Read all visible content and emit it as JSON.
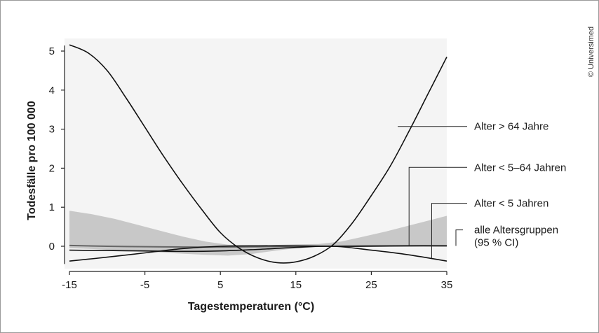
{
  "credit": "© Universimed",
  "chart_data": {
    "type": "line",
    "xlabel": "Tagestemperaturen (°C)",
    "ylabel": "Todesfälle pro 100 000",
    "xlim": [
      -15,
      35
    ],
    "ylim": [
      -0.42,
      5.35
    ],
    "x_ticks": [
      -15,
      -5,
      5,
      15,
      25,
      35
    ],
    "x_tick_labels": [
      "-15",
      "-5",
      "5",
      "15",
      "25",
      "35"
    ],
    "y_ticks": [
      0,
      1,
      2,
      3,
      4,
      5
    ],
    "y_tick_labels": [
      "0",
      "1",
      "2",
      "3",
      "4",
      "5"
    ],
    "grid": false,
    "series": [
      {
        "name": "Alter > 64 Jahre",
        "x": [
          -15,
          -12.5,
          -10,
          -7.5,
          -5,
          -2.5,
          0,
          2.5,
          5,
          7.5,
          10,
          12.5,
          15,
          17.5,
          20,
          22.5,
          25,
          27.5,
          30,
          32.5,
          35
        ],
        "y": [
          5.16,
          4.95,
          4.5,
          3.8,
          3.05,
          2.3,
          1.6,
          0.95,
          0.35,
          -0.05,
          -0.3,
          -0.42,
          -0.4,
          -0.25,
          0.05,
          0.6,
          1.3,
          2.05,
          2.95,
          3.9,
          4.85
        ],
        "color": "#111111"
      },
      {
        "name": "Alter < 5–64 Jahren",
        "x": [
          -15,
          -10,
          -5,
          0,
          5,
          10,
          15,
          20,
          25,
          30,
          35
        ],
        "y": [
          -0.38,
          -0.28,
          -0.17,
          -0.06,
          0.0,
          0.01,
          0.01,
          0.0,
          0.0,
          0.01,
          0.01
        ],
        "color": "#111111"
      },
      {
        "name": "Alter < 5 Jahren",
        "x": [
          -15,
          -10,
          -5,
          0,
          5,
          10,
          15,
          20,
          25,
          30,
          35
        ],
        "y": [
          -0.1,
          -0.11,
          -0.12,
          -0.13,
          -0.12,
          -0.08,
          -0.03,
          0.0,
          -0.1,
          -0.22,
          -0.38
        ],
        "color": "#111111"
      },
      {
        "name": "alle Altersgruppen",
        "x": [
          -15,
          -10,
          -5,
          0,
          5,
          10,
          15,
          20,
          25,
          30,
          35
        ],
        "y": [
          0.02,
          0.0,
          -0.01,
          -0.02,
          -0.02,
          -0.01,
          0.0,
          0.0,
          0.01,
          0.01,
          0.01
        ],
        "color": "#666666"
      }
    ],
    "band": {
      "name": "(95 % CI)",
      "x": [
        -15,
        -12,
        -9,
        -6,
        -3,
        0,
        3,
        6,
        9,
        12,
        15,
        18,
        21,
        24,
        27,
        30,
        33,
        35
      ],
      "upper": [
        0.91,
        0.82,
        0.7,
        0.55,
        0.4,
        0.25,
        0.12,
        0.04,
        0.01,
        0.03,
        0.05,
        0.06,
        0.12,
        0.25,
        0.38,
        0.53,
        0.68,
        0.78
      ],
      "lower": [
        -0.05,
        -0.07,
        -0.1,
        -0.13,
        -0.16,
        -0.19,
        -0.22,
        -0.24,
        -0.2,
        -0.12,
        -0.05,
        -0.02,
        -0.01,
        0.0,
        0.0,
        0.0,
        0.0,
        0.0
      ],
      "color": "#c8c8c8"
    },
    "plot_background": "#f4f4f4",
    "labels": [
      {
        "text": "Alter > 64 Jahre",
        "series": "Alter > 64 Jahre",
        "point": [
          28.5,
          3.07
        ],
        "label_y": 3.07
      },
      {
        "text": "Alter < 5–64 Jahren",
        "series": "Alter < 5–64 Jahren",
        "point": [
          30,
          0.01
        ],
        "label_y": 2.02
      },
      {
        "text": "Alter < 5 Jahren",
        "series": "Alter < 5 Jahren",
        "point": [
          33,
          -0.3
        ],
        "label_y": 1.1
      },
      {
        "text": "alle Altersgruppen",
        "series": "alle Altersgruppen",
        "point": [
          35,
          0.01
        ],
        "label_y": 0.42
      },
      {
        "text": "(95 % CI)",
        "series": "alle Altersgruppen",
        "point": null,
        "label_y": 0.1
      }
    ]
  }
}
